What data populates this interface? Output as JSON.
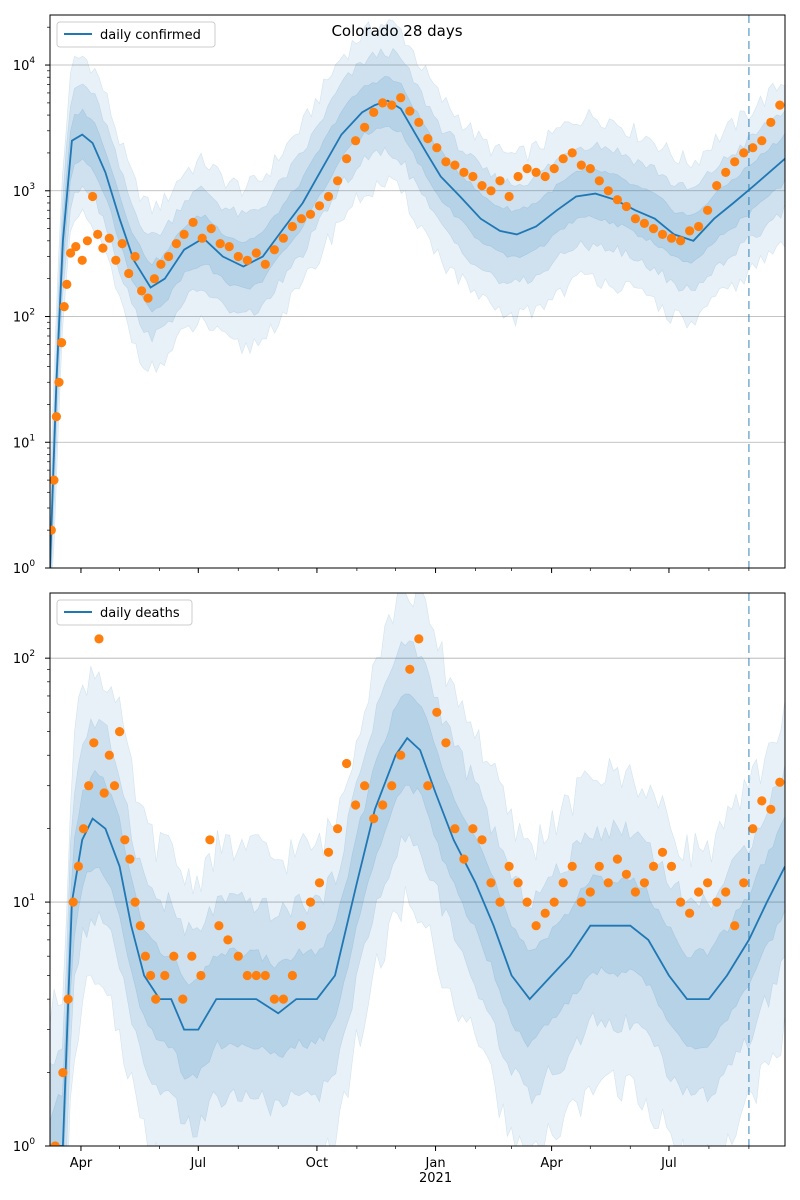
{
  "figure": {
    "title": "Colorado 28 days"
  },
  "chart_data": [
    {
      "type": "line",
      "id": "confirmed",
      "title": "Colorado 28 days",
      "yscale": "log",
      "ylim": [
        1,
        25000
      ],
      "y_ticks": [
        {
          "value": 1,
          "base": "10",
          "exp": "0"
        },
        {
          "value": 10,
          "base": "10",
          "exp": "1"
        },
        {
          "value": 100,
          "base": "10",
          "exp": "2"
        },
        {
          "value": 1000,
          "base": "10",
          "exp": "3"
        },
        {
          "value": 10000,
          "base": "10",
          "exp": "4"
        }
      ],
      "xlim": [
        "2020-03-08",
        "2021-09-29"
      ],
      "grid": "y-major",
      "legend": {
        "placement": "top-left",
        "entries": [
          "daily confirmed"
        ]
      },
      "forecast_start": "2021-09-01",
      "colors": {
        "line": "#1f77b4",
        "points": "#ff7f0e",
        "band": "#1f77b4",
        "vline": "#1f77b4"
      },
      "series": [
        {
          "name": "daily confirmed",
          "kind": "model-median",
          "x": [
            "2020-03-08",
            "2020-03-13",
            "2020-03-18",
            "2020-03-25",
            "2020-04-02",
            "2020-04-10",
            "2020-04-20",
            "2020-05-01",
            "2020-05-12",
            "2020-05-25",
            "2020-06-05",
            "2020-06-20",
            "2020-07-05",
            "2020-07-20",
            "2020-08-05",
            "2020-08-20",
            "2020-09-05",
            "2020-09-20",
            "2020-10-05",
            "2020-10-20",
            "2020-11-05",
            "2020-11-15",
            "2020-11-25",
            "2020-12-05",
            "2020-12-15",
            "2020-12-25",
            "2021-01-05",
            "2021-01-20",
            "2021-02-05",
            "2021-02-20",
            "2021-03-05",
            "2021-03-20",
            "2021-04-05",
            "2021-04-20",
            "2021-05-05",
            "2021-05-20",
            "2021-06-05",
            "2021-06-20",
            "2021-07-05",
            "2021-07-20",
            "2021-08-05",
            "2021-08-20",
            "2021-09-05",
            "2021-09-29"
          ],
          "y": [
            1,
            30,
            400,
            2500,
            2800,
            2400,
            1400,
            600,
            280,
            170,
            200,
            340,
            420,
            300,
            250,
            300,
            500,
            800,
            1500,
            2800,
            4200,
            4800,
            5200,
            4500,
            3000,
            2000,
            1300,
            900,
            600,
            480,
            450,
            520,
            700,
            900,
            950,
            850,
            700,
            600,
            450,
            400,
            600,
            800,
            1100,
            1800
          ]
        },
        {
          "name": "observed",
          "kind": "points",
          "x": [
            "2020-03-09",
            "2020-03-11",
            "2020-03-13",
            "2020-03-15",
            "2020-03-17",
            "2020-03-19",
            "2020-03-21",
            "2020-03-24",
            "2020-03-28",
            "2020-04-02",
            "2020-04-06",
            "2020-04-10",
            "2020-04-14",
            "2020-04-18",
            "2020-04-23",
            "2020-04-28",
            "2020-05-03",
            "2020-05-08",
            "2020-05-13",
            "2020-05-18",
            "2020-05-23",
            "2020-05-28",
            "2020-06-02",
            "2020-06-08",
            "2020-06-14",
            "2020-06-20",
            "2020-06-27",
            "2020-07-04",
            "2020-07-11",
            "2020-07-18",
            "2020-07-25",
            "2020-08-01",
            "2020-08-08",
            "2020-08-15",
            "2020-08-22",
            "2020-08-29",
            "2020-09-05",
            "2020-09-12",
            "2020-09-19",
            "2020-09-26",
            "2020-10-03",
            "2020-10-10",
            "2020-10-17",
            "2020-10-24",
            "2020-10-31",
            "2020-11-07",
            "2020-11-14",
            "2020-11-21",
            "2020-11-28",
            "2020-12-05",
            "2020-12-12",
            "2020-12-19",
            "2020-12-26",
            "2021-01-02",
            "2021-01-09",
            "2021-01-16",
            "2021-01-23",
            "2021-01-30",
            "2021-02-06",
            "2021-02-13",
            "2021-02-20",
            "2021-02-27",
            "2021-03-06",
            "2021-03-13",
            "2021-03-20",
            "2021-03-27",
            "2021-04-03",
            "2021-04-10",
            "2021-04-17",
            "2021-04-24",
            "2021-05-01",
            "2021-05-08",
            "2021-05-15",
            "2021-05-22",
            "2021-05-29",
            "2021-06-05",
            "2021-06-12",
            "2021-06-19",
            "2021-06-26",
            "2021-07-03",
            "2021-07-10",
            "2021-07-17",
            "2021-07-24",
            "2021-07-31",
            "2021-08-07",
            "2021-08-14",
            "2021-08-21",
            "2021-08-28",
            "2021-09-04",
            "2021-09-11",
            "2021-09-18",
            "2021-09-25"
          ],
          "y": [
            2,
            5,
            16,
            30,
            62,
            120,
            180,
            320,
            360,
            280,
            400,
            900,
            450,
            350,
            420,
            280,
            380,
            220,
            300,
            160,
            140,
            200,
            260,
            300,
            380,
            450,
            560,
            420,
            500,
            380,
            360,
            300,
            280,
            320,
            260,
            340,
            420,
            520,
            600,
            650,
            760,
            900,
            1200,
            1800,
            2500,
            3200,
            4200,
            5000,
            4800,
            5500,
            4300,
            3500,
            2600,
            2200,
            1700,
            1600,
            1400,
            1300,
            1100,
            1000,
            1200,
            900,
            1300,
            1500,
            1400,
            1300,
            1500,
            1800,
            2000,
            1600,
            1500,
            1200,
            1000,
            850,
            750,
            600,
            550,
            500,
            450,
            420,
            400,
            480,
            520,
            700,
            1100,
            1400,
            1700,
            2000,
            2200,
            2500,
            3500,
            4800
          ]
        }
      ]
    },
    {
      "type": "line",
      "id": "deaths",
      "yscale": "log",
      "ylim": [
        1,
        185
      ],
      "y_ticks": [
        {
          "value": 1,
          "base": "10",
          "exp": "0"
        },
        {
          "value": 10,
          "base": "10",
          "exp": "1"
        },
        {
          "value": 100,
          "base": "10",
          "exp": "2"
        }
      ],
      "x_ticks": [
        "Apr",
        "Jul",
        "Oct",
        "Jan",
        "Apr",
        "Jul"
      ],
      "x_tick_dates": [
        "2020-04-01",
        "2020-07-01",
        "2020-10-01",
        "2021-01-01",
        "2021-04-01",
        "2021-07-01"
      ],
      "x_year_label": "2021",
      "xlim": [
        "2020-03-08",
        "2021-09-29"
      ],
      "grid": "y-major",
      "legend": {
        "placement": "top-left",
        "entries": [
          "daily deaths"
        ]
      },
      "forecast_start": "2021-09-01",
      "colors": {
        "line": "#1f77b4",
        "points": "#ff7f0e",
        "band": "#1f77b4",
        "vline": "#1f77b4"
      },
      "series": [
        {
          "name": "daily deaths",
          "kind": "model-median",
          "x": [
            "2020-03-08",
            "2020-03-14",
            "2020-03-18",
            "2020-03-25",
            "2020-04-02",
            "2020-04-10",
            "2020-04-20",
            "2020-05-01",
            "2020-05-10",
            "2020-05-20",
            "2020-06-01",
            "2020-06-10",
            "2020-06-20",
            "2020-07-01",
            "2020-07-15",
            "2020-08-01",
            "2020-08-15",
            "2020-09-01",
            "2020-09-15",
            "2020-10-01",
            "2020-10-15",
            "2020-11-01",
            "2020-11-15",
            "2020-12-01",
            "2020-12-10",
            "2020-12-20",
            "2021-01-01",
            "2021-01-15",
            "2021-02-01",
            "2021-02-15",
            "2021-03-01",
            "2021-03-15",
            "2021-04-01",
            "2021-04-15",
            "2021-05-01",
            "2021-05-15",
            "2021-06-01",
            "2021-06-15",
            "2021-07-01",
            "2021-07-15",
            "2021-08-01",
            "2021-08-15",
            "2021-09-01",
            "2021-09-15",
            "2021-09-29"
          ],
          "y": [
            0.8,
            1,
            1,
            10,
            18,
            22,
            20,
            14,
            8,
            5,
            4,
            4,
            3,
            3,
            4,
            4,
            4,
            3.5,
            4,
            4,
            5,
            12,
            24,
            40,
            47,
            42,
            28,
            18,
            12,
            8,
            5,
            4,
            5,
            6,
            8,
            8,
            8,
            7,
            5,
            4,
            4,
            5,
            7,
            10,
            14
          ]
        },
        {
          "name": "observed",
          "kind": "points",
          "x": [
            "2020-03-12",
            "2020-03-18",
            "2020-03-22",
            "2020-03-26",
            "2020-03-30",
            "2020-04-03",
            "2020-04-07",
            "2020-04-11",
            "2020-04-15",
            "2020-04-19",
            "2020-04-23",
            "2020-04-27",
            "2020-05-01",
            "2020-05-05",
            "2020-05-09",
            "2020-05-13",
            "2020-05-17",
            "2020-05-21",
            "2020-05-25",
            "2020-05-29",
            "2020-06-05",
            "2020-06-12",
            "2020-06-19",
            "2020-06-26",
            "2020-07-03",
            "2020-07-10",
            "2020-07-17",
            "2020-07-24",
            "2020-08-01",
            "2020-08-08",
            "2020-08-15",
            "2020-08-22",
            "2020-08-29",
            "2020-09-05",
            "2020-09-12",
            "2020-09-19",
            "2020-09-26",
            "2020-10-03",
            "2020-10-10",
            "2020-10-17",
            "2020-10-24",
            "2020-10-31",
            "2020-11-07",
            "2020-11-14",
            "2020-11-21",
            "2020-11-28",
            "2020-12-05",
            "2020-12-12",
            "2020-12-19",
            "2020-12-26",
            "2021-01-02",
            "2021-01-09",
            "2021-01-16",
            "2021-01-23",
            "2021-01-30",
            "2021-02-06",
            "2021-02-13",
            "2021-02-20",
            "2021-02-27",
            "2021-03-06",
            "2021-03-13",
            "2021-03-20",
            "2021-03-27",
            "2021-04-03",
            "2021-04-10",
            "2021-04-17",
            "2021-04-24",
            "2021-05-01",
            "2021-05-08",
            "2021-05-15",
            "2021-05-22",
            "2021-05-29",
            "2021-06-05",
            "2021-06-12",
            "2021-06-19",
            "2021-06-26",
            "2021-07-03",
            "2021-07-10",
            "2021-07-17",
            "2021-07-24",
            "2021-07-31",
            "2021-08-07",
            "2021-08-14",
            "2021-08-21",
            "2021-08-28",
            "2021-09-04",
            "2021-09-11",
            "2021-09-18",
            "2021-09-25"
          ],
          "y": [
            1,
            2,
            4,
            10,
            14,
            20,
            30,
            45,
            120,
            28,
            40,
            30,
            50,
            18,
            15,
            10,
            8,
            6,
            5,
            4,
            5,
            6,
            4,
            6,
            5,
            18,
            8,
            7,
            6,
            5,
            5,
            5,
            4,
            4,
            5,
            8,
            10,
            12,
            16,
            20,
            37,
            25,
            30,
            22,
            25,
            30,
            40,
            90,
            120,
            30,
            60,
            45,
            20,
            15,
            20,
            18,
            12,
            10,
            14,
            12,
            10,
            8,
            9,
            10,
            12,
            14,
            10,
            11,
            14,
            12,
            15,
            13,
            11,
            12,
            14,
            16,
            14,
            10,
            9,
            11,
            12,
            10,
            11,
            8,
            12,
            20,
            26,
            24,
            31
          ]
        }
      ]
    }
  ]
}
